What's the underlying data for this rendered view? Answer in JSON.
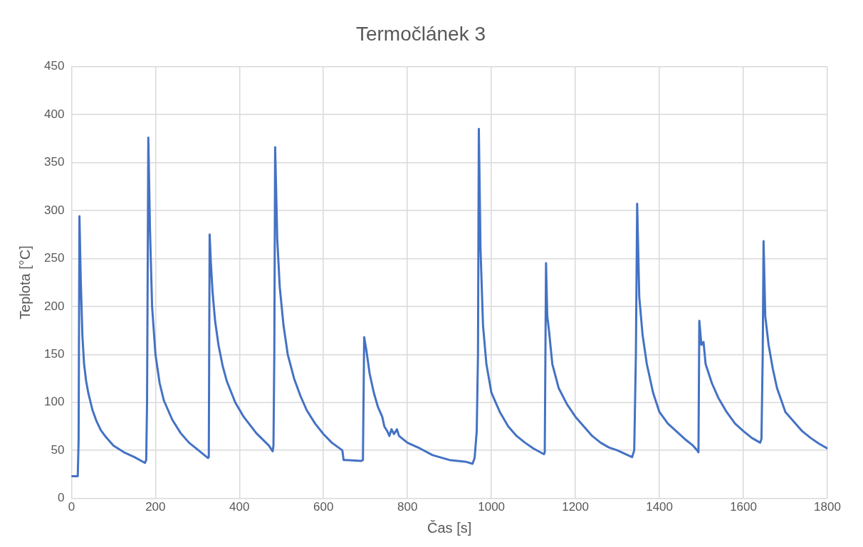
{
  "chart_data": {
    "type": "line",
    "title": "Termočlánek 3",
    "xlabel": "Čas [s]",
    "ylabel": "Teplota [°C]",
    "xlim": [
      0,
      1800
    ],
    "xticks": [
      0,
      200,
      400,
      600,
      800,
      1000,
      1200,
      1400,
      1600,
      1800
    ],
    "ylim": [
      0,
      450
    ],
    "yticks": [
      0,
      50,
      100,
      150,
      200,
      250,
      300,
      350,
      400,
      450
    ],
    "grid": true,
    "legend": false,
    "marker": "none",
    "line_style": "solid",
    "series": [
      {
        "color": "#4472c4",
        "x": [
          0,
          15,
          17,
          19,
          22,
          26,
          30,
          35,
          40,
          50,
          60,
          70,
          80,
          100,
          125,
          150,
          175,
          178,
          180,
          183,
          187,
          192,
          200,
          210,
          220,
          240,
          260,
          280,
          300,
          325,
          327,
          329,
          332,
          336,
          342,
          350,
          360,
          370,
          390,
          410,
          440,
          470,
          479,
          481,
          483,
          485,
          490,
          496,
          505,
          515,
          530,
          545,
          560,
          580,
          600,
          620,
          645,
          648,
          655,
          690,
          694,
          697,
          702,
          710,
          720,
          730,
          740,
          745,
          752,
          757,
          762,
          768,
          775,
          780,
          800,
          830,
          860,
          900,
          940,
          955,
          960,
          965,
          968,
          970,
          974,
          980,
          988,
          1000,
          1020,
          1040,
          1060,
          1080,
          1100,
          1125,
          1127,
          1130,
          1133,
          1137,
          1145,
          1160,
          1180,
          1200,
          1220,
          1240,
          1260,
          1280,
          1300,
          1320,
          1335,
          1340,
          1344,
          1347,
          1352,
          1360,
          1370,
          1385,
          1400,
          1420,
          1440,
          1460,
          1480,
          1490,
          1493,
          1495,
          1500,
          1505,
          1510,
          1525,
          1540,
          1560,
          1580,
          1600,
          1620,
          1640,
          1643,
          1646,
          1648,
          1652,
          1660,
          1670,
          1680,
          1700,
          1720,
          1740,
          1760,
          1780,
          1800
        ],
        "values": [
          23,
          23,
          60,
          294,
          230,
          170,
          140,
          122,
          110,
          92,
          80,
          71,
          65,
          55,
          48,
          43,
          37,
          40,
          100,
          376,
          280,
          200,
          150,
          120,
          102,
          82,
          68,
          58,
          51,
          42,
          43,
          275,
          245,
          215,
          185,
          160,
          138,
          122,
          100,
          85,
          68,
          55,
          49,
          55,
          150,
          366,
          270,
          220,
          180,
          150,
          125,
          107,
          92,
          78,
          67,
          58,
          50,
          40,
          40,
          39,
          40,
          168,
          155,
          130,
          110,
          95,
          85,
          75,
          70,
          65,
          72,
          67,
          72,
          65,
          58,
          52,
          45,
          40,
          38,
          36,
          42,
          70,
          150,
          385,
          260,
          180,
          140,
          110,
          90,
          75,
          65,
          58,
          52,
          46,
          48,
          245,
          190,
          175,
          140,
          115,
          98,
          85,
          75,
          65,
          58,
          53,
          50,
          46,
          43,
          50,
          150,
          307,
          210,
          170,
          140,
          110,
          90,
          78,
          70,
          62,
          55,
          50,
          48,
          185,
          160,
          163,
          140,
          120,
          105,
          90,
          78,
          70,
          63,
          58,
          62,
          150,
          268,
          190,
          160,
          135,
          115,
          90,
          80,
          70,
          63,
          57,
          52
        ]
      }
    ]
  }
}
